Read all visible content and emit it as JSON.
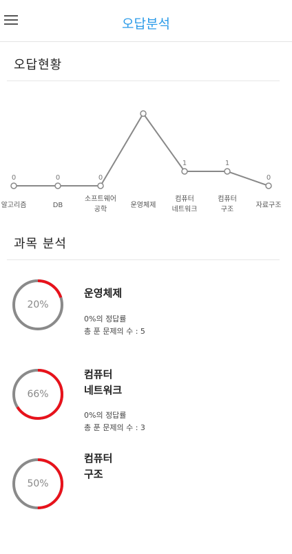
{
  "header": {
    "title": "오답분석"
  },
  "sections": {
    "status_title": "오답현황",
    "subject_title": "과목 분석"
  },
  "chart_data": {
    "type": "line",
    "categories": [
      "알고리즘",
      "DB",
      "소프트웨어 공학",
      "운영체제",
      "컴퓨터 네트워크",
      "컴퓨터 구조",
      "자료구조"
    ],
    "category_lines": [
      [
        "알고리즘"
      ],
      [
        "DB"
      ],
      [
        "소프트웨어",
        "공학"
      ],
      [
        "운영체제"
      ],
      [
        "컴퓨터",
        "네트워크"
      ],
      [
        "컴퓨터",
        "구조"
      ],
      [
        "자료구조"
      ]
    ],
    "values": [
      0,
      0,
      0,
      5,
      1,
      1,
      0
    ],
    "value_labels": [
      "0",
      "0",
      "0",
      "",
      "1",
      "1",
      "0"
    ],
    "ylim": [
      0,
      5
    ],
    "grid": false,
    "line_color": "#888888"
  },
  "subjects": [
    {
      "name_lines": [
        "운영체제"
      ],
      "percent": 20,
      "percent_label": "20%",
      "rate_text": "0%의 정답률",
      "total_text": "총 푼 문제의 수 : 5"
    },
    {
      "name_lines": [
        "컴퓨터",
        "네트워크"
      ],
      "percent": 66,
      "percent_label": "66%",
      "rate_text": "0%의 정답률",
      "total_text": "총 푼 문제의 수 : 3"
    },
    {
      "name_lines": [
        "컴퓨터",
        "구조"
      ],
      "percent": 50,
      "percent_label": "50%",
      "rate_text": "",
      "total_text": ""
    }
  ],
  "colors": {
    "accent": "#2b9be8",
    "ring_fill": "#e8121b",
    "ring_track": "#8a8a8a"
  }
}
